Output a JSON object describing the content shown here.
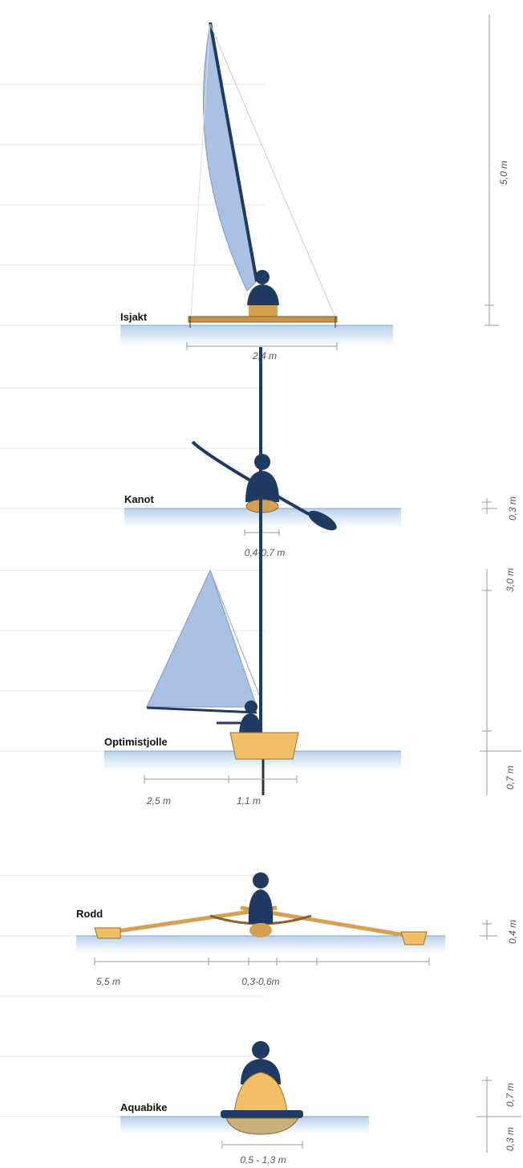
{
  "vessels": [
    {
      "name": "Isjakt",
      "width_labels": [
        "2,4 m"
      ],
      "height_labels": [
        "5,0 m"
      ]
    },
    {
      "name": "Kanot",
      "width_labels": [
        "0,4-0,7 m"
      ],
      "height_labels": [
        "0,3 m"
      ]
    },
    {
      "name": "Optimistjolle",
      "width_labels": [
        "2,5 m",
        "1,1 m"
      ],
      "height_labels": [
        "3,0 m",
        "0,7 m"
      ]
    },
    {
      "name": "Rodd",
      "width_labels": [
        "5,5 m",
        "0,3-0,6m"
      ],
      "height_labels": [
        "0,4 m"
      ]
    },
    {
      "name": "Aquabike",
      "width_labels": [
        "0,5 - 1,3 m"
      ],
      "height_labels": [
        "0,7 m",
        "0,3 m"
      ]
    }
  ]
}
